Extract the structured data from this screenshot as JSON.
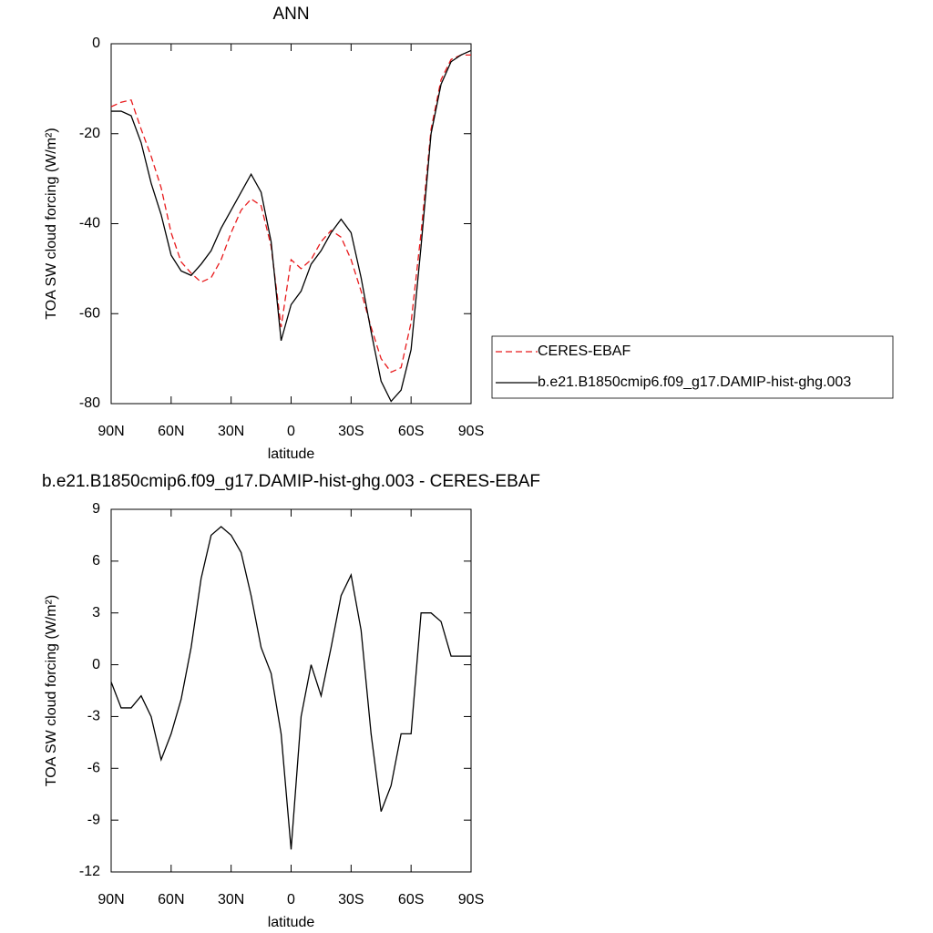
{
  "chart_data": [
    {
      "type": "line",
      "title": "ANN",
      "x_label": "latitude",
      "y_label": "TOA SW cloud forcing (W/m²)",
      "x": [
        90,
        85,
        80,
        75,
        70,
        65,
        60,
        55,
        50,
        45,
        40,
        35,
        30,
        25,
        20,
        15,
        10,
        5,
        0,
        -5,
        -10,
        -15,
        -20,
        -25,
        -30,
        -35,
        -40,
        -45,
        -50,
        -55,
        -60,
        -65,
        -70,
        -75,
        -80,
        -85,
        -90
      ],
      "xlim": [
        90,
        -90
      ],
      "xticks": [
        {
          "value": 90,
          "label": "90N"
        },
        {
          "value": 60,
          "label": "60N"
        },
        {
          "value": 30,
          "label": "30N"
        },
        0,
        {
          "value": -30,
          "label": "30S"
        },
        {
          "value": -60,
          "label": "60S"
        },
        {
          "value": -90,
          "label": "90S"
        }
      ],
      "ylim": [
        -80,
        0
      ],
      "yticks": [
        0,
        -20,
        -40,
        -60,
        -80
      ],
      "legend": "right",
      "series": [
        {
          "name": "CERES-EBAF",
          "color": "#e8191b",
          "dash": "dashed",
          "values": [
            -14,
            -13,
            -12.5,
            -19,
            -25,
            -32,
            -42,
            -48.5,
            -51,
            -53,
            -52,
            -48,
            -42,
            -37,
            -34.5,
            -36,
            -45,
            -63,
            -48,
            -50,
            -48,
            -44,
            -41.5,
            -43,
            -48,
            -55,
            -63,
            -70,
            -73,
            -72,
            -62,
            -42,
            -19,
            -8,
            -3.5,
            -2.5,
            -2.5
          ]
        },
        {
          "name": "b.e21.B1850cmip6.f09_g17.DAMIP-hist-ghg.003",
          "color": "#000000",
          "dash": "solid",
          "values": [
            -15,
            -15,
            -16,
            -22,
            -31,
            -38,
            -47,
            -50.5,
            -51.5,
            -49,
            -46,
            -41,
            -37,
            -33,
            -29,
            -33,
            -44,
            -66,
            -58,
            -55,
            -49,
            -46,
            -42,
            -39,
            -42,
            -52,
            -64,
            -75,
            -79.5,
            -77,
            -68,
            -45,
            -20,
            -9,
            -4,
            -2.5,
            -1.5
          ]
        }
      ]
    },
    {
      "type": "line",
      "title": "b.e21.B1850cmip6.f09_g17.DAMIP-hist-ghg.003 - CERES-EBAF",
      "x_label": "latitude",
      "y_label": "TOA SW cloud forcing (W/m²)",
      "x": [
        90,
        85,
        80,
        75,
        70,
        65,
        60,
        55,
        50,
        45,
        40,
        35,
        30,
        25,
        20,
        15,
        10,
        5,
        0,
        -5,
        -10,
        -15,
        -20,
        -25,
        -30,
        -35,
        -40,
        -45,
        -50,
        -55,
        -60,
        -65,
        -70,
        -75,
        -80,
        -85,
        -90
      ],
      "xlim": [
        90,
        -90
      ],
      "xticks": [
        {
          "value": 90,
          "label": "90N"
        },
        {
          "value": 60,
          "label": "60N"
        },
        {
          "value": 30,
          "label": "30N"
        },
        0,
        {
          "value": -30,
          "label": "30S"
        },
        {
          "value": -60,
          "label": "60S"
        },
        {
          "value": -90,
          "label": "90S"
        }
      ],
      "ylim": [
        -12,
        9
      ],
      "yticks": [
        9,
        6,
        3,
        0,
        -3,
        -6,
        -9,
        -12
      ],
      "series": [
        {
          "color": "#000000",
          "dash": "solid",
          "values": [
            -1,
            -2.5,
            -2.5,
            -1.8,
            -3,
            -5.5,
            -4,
            -2,
            1,
            5,
            7.5,
            8,
            7.5,
            6.5,
            4,
            1,
            -0.5,
            -4,
            -10.7,
            -3,
            0,
            -1.8,
            1,
            4,
            5.2,
            2,
            -4,
            -8.5,
            -7,
            -4,
            -4,
            3,
            3,
            2.5,
            0.5,
            0.5,
            0.5
          ]
        }
      ]
    }
  ]
}
